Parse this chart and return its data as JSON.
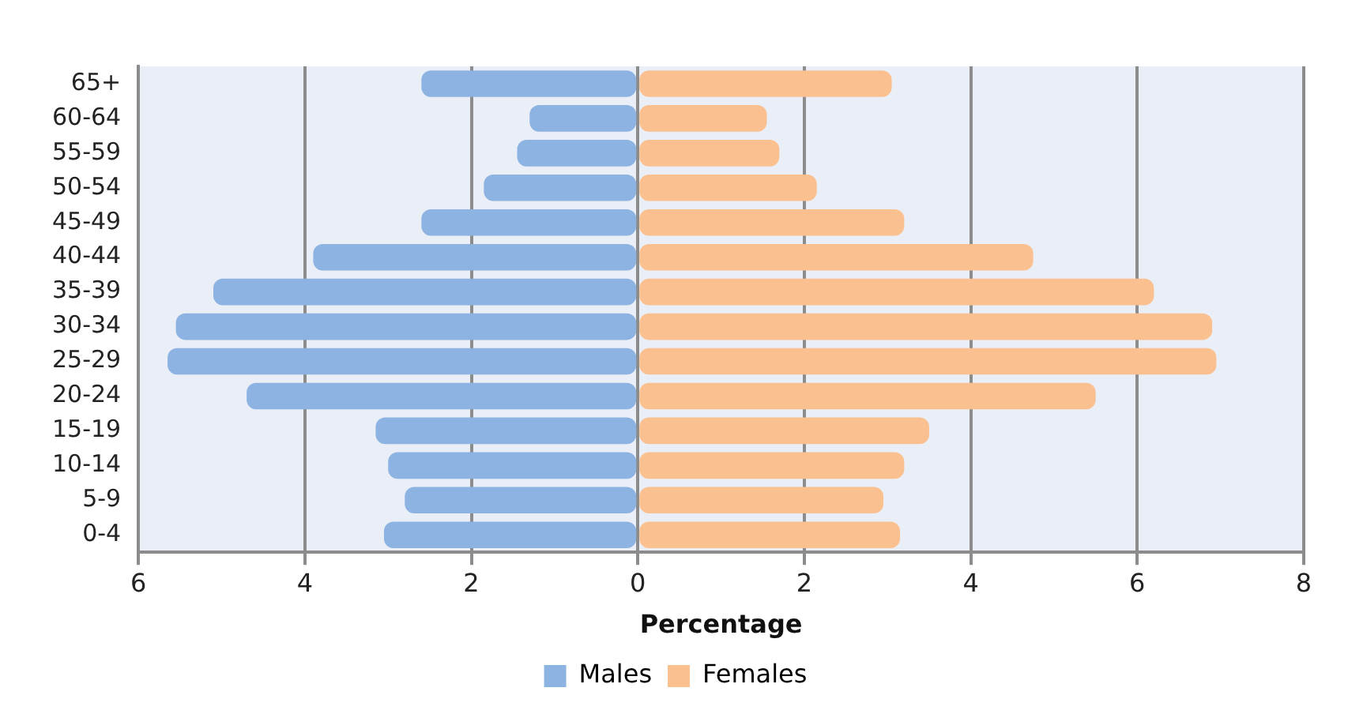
{
  "chart_data": {
    "type": "bar",
    "orientation": "horizontal",
    "stacked": true,
    "xlabel": "Percentage",
    "categories": [
      "65+",
      "60-64",
      "55-59",
      "50-54",
      "45-49",
      "40-44",
      "35-39",
      "30-34",
      "25-29",
      "20-24",
      "15-19",
      "10-14",
      "5-9",
      "0-4"
    ],
    "series": [
      {
        "name": "Males",
        "color": "#8db3e2",
        "values": [
          -2.6,
          -1.3,
          -1.45,
          -1.85,
          -2.6,
          -3.9,
          -5.1,
          -5.55,
          -5.65,
          -4.7,
          -3.15,
          -3.0,
          -2.8,
          -3.05
        ]
      },
      {
        "name": "Females",
        "color": "#fac090",
        "values": [
          3.05,
          1.55,
          1.7,
          2.15,
          3.2,
          4.75,
          6.2,
          6.9,
          6.95,
          5.5,
          3.5,
          3.2,
          2.95,
          3.15
        ]
      }
    ],
    "xlim": [
      -6,
      8
    ],
    "xticks": [
      {
        "value": -6,
        "label": "6"
      },
      {
        "value": -4,
        "label": "4"
      },
      {
        "value": -2,
        "label": "2"
      },
      0,
      2,
      4,
      6,
      8
    ],
    "grid": "x",
    "legend": "bottom"
  }
}
